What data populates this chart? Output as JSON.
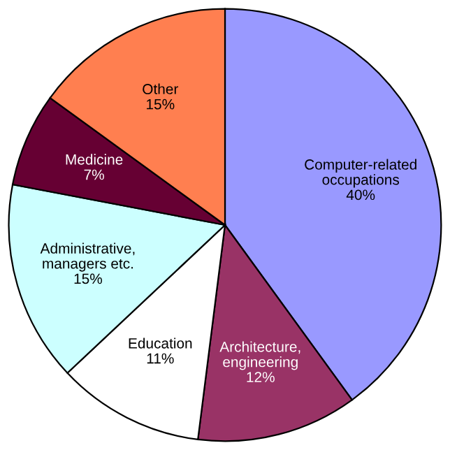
{
  "chart_data": {
    "type": "pie",
    "categories": [
      "Computer-related\noccupations",
      "Architecture,\nengineering",
      "Education",
      "Administrative,\nmanagers etc.",
      "Medicine",
      "Other"
    ],
    "values": [
      40,
      12,
      11,
      15,
      7,
      15
    ],
    "value_labels": [
      "40%",
      "12%",
      "11%",
      "15%",
      "7%",
      "15%"
    ],
    "colors": [
      "#9999ff",
      "#993366",
      "#ffffff",
      "#ccffff",
      "#660033",
      "#ff7f50"
    ],
    "legend": false
  }
}
